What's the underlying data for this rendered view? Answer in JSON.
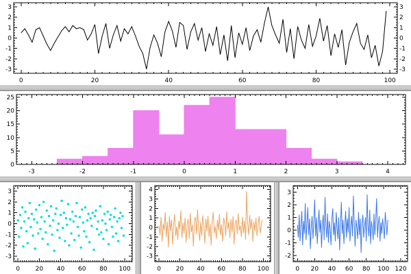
{
  "window": {
    "background_color": "#c6c6c6",
    "panel_color": "#ffffff",
    "axis_color": "#000000"
  },
  "chart_data": [
    {
      "id": "noise-line",
      "type": "line",
      "title": "",
      "color": "#000000",
      "xlim": [
        -2,
        102
      ],
      "ylim": [
        -3.4,
        3.4
      ],
      "xtick_step": 20,
      "ytick_step": 1,
      "x_minor": 2,
      "y_minor": 0.25,
      "xticks": [
        0,
        20,
        40,
        60,
        80,
        100
      ],
      "yticks": [
        -3,
        -2,
        -1,
        0,
        1,
        2,
        3
      ],
      "label_right": true,
      "x_step": 1,
      "values": [
        0.5,
        0.9,
        0.3,
        -0.4,
        0.8,
        1.0,
        0.2,
        -0.6,
        -1.2,
        -0.5,
        0.1,
        0.7,
        1.1,
        0.6,
        1.2,
        0.9,
        1.0,
        0.8,
        -0.2,
        0.4,
        1.3,
        -1.5,
        0.2,
        1.4,
        -1.0,
        0.3,
        1.2,
        -0.3,
        0.9,
        0.4,
        1.1,
        0.2,
        -0.8,
        -1.5,
        -3.0,
        -0.9,
        0.3,
        -0.5,
        -1.8,
        0.6,
        1.6,
        0.7,
        -0.9,
        1.5,
        1.2,
        -1.1,
        0.6,
        1.4,
        -0.2,
        1.0,
        -1.3,
        0.4,
        -0.7,
        1.1,
        -1.6,
        0.3,
        -2.2,
        1.2,
        -1.9,
        0.5,
        -0.6,
        1.0,
        -1.2,
        0.2,
        0.8,
        -0.4,
        1.5,
        3.0,
        1.2,
        0.3,
        -0.5,
        1.8,
        -1.4,
        0.9,
        -2.0,
        1.1,
        -0.2,
        -1.0,
        1.3,
        -0.8,
        0.2,
        1.9,
        -0.3,
        1.2,
        -1.7,
        0.4,
        -0.9,
        0.8,
        -2.6,
        -0.4,
        0.6,
        1.4,
        -0.5,
        -1.1,
        0.3,
        -1.9,
        -0.7,
        -2.7,
        -1.3,
        2.6
      ]
    },
    {
      "id": "histogram",
      "type": "histogram",
      "title": "",
      "color": "#ee82ee",
      "xlim": [
        -3.3,
        4.35
      ],
      "ylim": [
        0,
        26
      ],
      "xtick_step": 1,
      "ytick_step": 5,
      "x_minor": 0.1,
      "y_minor": 1,
      "xticks": [
        -3,
        -2,
        -1,
        0,
        1,
        2,
        3,
        4
      ],
      "yticks": [
        0,
        5,
        10,
        15,
        20,
        25
      ],
      "bin_start": -2.5,
      "bin_width": 0.5,
      "values": [
        2,
        3,
        6,
        20,
        11,
        22,
        25,
        13,
        13,
        6,
        2,
        1
      ]
    },
    {
      "id": "scatter",
      "type": "scatter",
      "title": "",
      "color": "#00dede",
      "xlim": [
        -4,
        107
      ],
      "ylim": [
        -3.5,
        3.5
      ],
      "xtick_step": 20,
      "ytick_step": 1,
      "x_minor": 2,
      "y_minor": 0.25,
      "xticks": [
        0,
        20,
        40,
        60,
        80,
        100
      ],
      "yticks": [
        -3,
        -2,
        -1,
        0,
        1,
        2,
        3
      ],
      "x_step": 1,
      "values": [
        0.3,
        -1.2,
        0.8,
        -0.4,
        1.5,
        -2.1,
        0.2,
        1.1,
        -0.7,
        -1.8,
        0.5,
        1.9,
        -0.3,
        0.9,
        -1.1,
        0.4,
        -2.3,
        1.3,
        0.1,
        -0.9,
        1.7,
        -0.5,
        0.6,
        -1.4,
        2.0,
        0.2,
        -0.8,
        1.2,
        -1.9,
        0.7,
        -0.2,
        1.6,
        -1.0,
        0.3,
        -2.5,
        0.9,
        1.4,
        -0.6,
        0.0,
        -1.3,
        0.8,
        2.1,
        -0.4,
        1.0,
        -1.6,
        0.5,
        -0.1,
        1.8,
        -2.0,
        0.4,
        -0.9,
        1.1,
        0.2,
        -1.5,
        0.7,
        1.9,
        -0.3,
        -1.1,
        0.6,
        -2.2,
        1.3,
        0.1,
        -0.7,
        1.5,
        -1.2,
        0.3,
        0.9,
        -1.7,
        0.5,
        -0.2,
        1.0,
        -2.4,
        0.7,
        1.2,
        -0.5,
        0.2,
        -1.0,
        1.6,
        -0.8,
        0.3,
        -1.4,
        0.9,
        0.0,
        -0.6,
        1.1,
        -1.9,
        0.4,
        0.8,
        -0.3,
        -1.2,
        0.6,
        1.4,
        -0.9,
        0.2,
        -1.6,
        0.5,
        1.0,
        -0.4,
        0.7,
        -1.1
      ]
    },
    {
      "id": "impulse",
      "type": "line",
      "title": "",
      "color": "#eda460",
      "xlim": [
        -4,
        107
      ],
      "ylim": [
        -3.6,
        4.4
      ],
      "xtick_step": 20,
      "ytick_step": 1,
      "x_minor": 2,
      "y_minor": 0.25,
      "xticks": [
        0,
        20,
        40,
        60,
        80,
        100
      ],
      "yticks": [
        -3,
        -2,
        -1,
        0,
        1,
        2,
        3,
        4
      ],
      "x_step": 1,
      "values": [
        0.2,
        -0.8,
        1.1,
        -1.5,
        0.4,
        -0.3,
        1.6,
        -1.0,
        0.6,
        -2.1,
        1.2,
        -0.4,
        0.8,
        -1.8,
        0.3,
        1.4,
        -0.9,
        0.1,
        -1.3,
        0.7,
        -0.2,
        1.8,
        -1.1,
        0.5,
        -0.6,
        1.0,
        -1.6,
        0.2,
        0.9,
        -1.2,
        1.5,
        -0.5,
        0.3,
        -2.0,
        0.8,
        1.1,
        -0.7,
        1.9,
        -0.1,
        -1.4,
        0.6,
        -0.9,
        1.3,
        0.2,
        -1.7,
        0.9,
        -0.4,
        1.2,
        -1.0,
        0.4,
        -1.9,
        0.7,
        1.6,
        -0.6,
        0.1,
        -1.2,
        0.8,
        -0.3,
        1.4,
        -0.8,
        0.3,
        -1.5,
        1.0,
        0.5,
        -0.9,
        1.7,
        -0.2,
        0.6,
        -1.1,
        0.9,
        -0.5,
        1.2,
        -1.8,
        0.4,
        0.8,
        -0.7,
        1.5,
        -0.3,
        0.2,
        -1.0,
        1.1,
        -0.6,
        0.7,
        -1.3,
        3.8,
        0.5,
        -0.8,
        1.3,
        -0.2,
        0.9,
        -1.5,
        0.6,
        -0.4,
        1.0,
        -0.9,
        0.3,
        1.2,
        -0.6,
        0.1,
        0.8
      ]
    },
    {
      "id": "blue-line",
      "type": "line",
      "title": "",
      "color": "#3b78e7",
      "xlim": [
        -5,
        128
      ],
      "ylim": [
        -2.5,
        3.5
      ],
      "xtick_step": 20,
      "ytick_step": 1,
      "x_minor": 2,
      "y_minor": 0.25,
      "xticks": [
        0,
        20,
        40,
        60,
        80,
        100,
        120
      ],
      "yticks": [
        -2,
        -1,
        0,
        1,
        2,
        3
      ],
      "x_step": 1,
      "values": [
        0.4,
        -0.6,
        1.2,
        -0.9,
        0.3,
        1.5,
        -1.2,
        0.7,
        -0.3,
        2.1,
        -0.8,
        0.5,
        1.8,
        -0.4,
        0.9,
        -1.5,
        0.2,
        1.1,
        -0.7,
        0.6,
        2.4,
        -0.5,
        1.0,
        -1.1,
        0.3,
        1.6,
        -0.2,
        0.8,
        -1.4,
        0.5,
        1.2,
        -0.8,
        2.6,
        0.4,
        -0.6,
        1.3,
        -1.0,
        0.7,
        0.1,
        -1.2,
        0.9,
        1.7,
        -0.4,
        0.6,
        -0.9,
        1.4,
        0.2,
        -0.7,
        1.0,
        -1.6,
        0.5,
        2.2,
        -0.3,
        0.8,
        -1.1,
        0.4,
        1.5,
        -0.6,
        0.9,
        -0.2,
        1.8,
        -0.9,
        0.3,
        1.1,
        -0.5,
        2.7,
        0.6,
        -1.3,
        0.8,
        0.2,
        -0.7,
        1.4,
        -0.4,
        0.9,
        -1.8,
        0.5,
        1.2,
        -0.6,
        0.3,
        1.0,
        -0.9,
        2.8,
        0.4,
        -0.5,
        1.6,
        -1.1,
        0.7,
        0.2,
        -0.8,
        1.3,
        -0.4,
        0.8,
        2.5,
        -0.6,
        0.5,
        1.1,
        -0.9,
        0.6,
        -0.3,
        0.9,
        0.2,
        -0.7,
        1.4,
        0.5,
        -0.4,
        0.8
      ]
    }
  ]
}
